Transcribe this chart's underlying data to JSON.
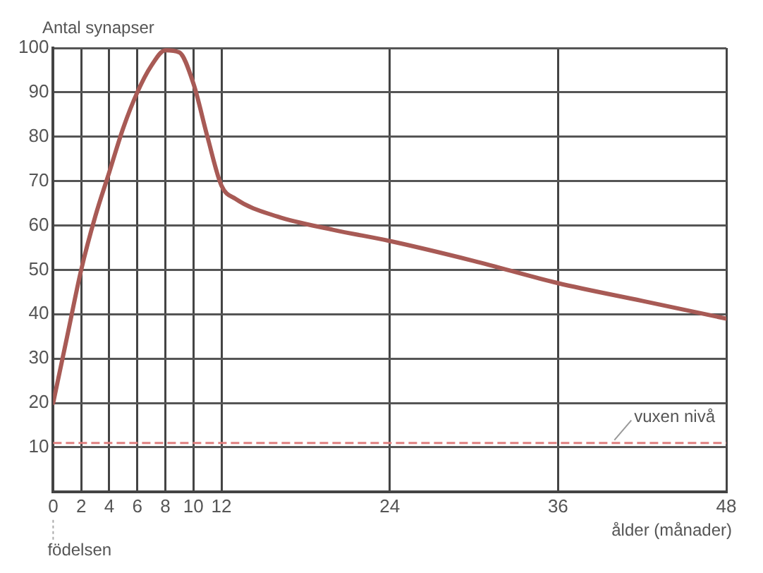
{
  "chart_data": {
    "type": "line",
    "xlabel": "ålder (månader)",
    "ylabel": "Antal synapser",
    "x": [
      0,
      1,
      2,
      3,
      4,
      5,
      6,
      7,
      8,
      9,
      10,
      11,
      12,
      13,
      16,
      20,
      24,
      30,
      36,
      42,
      48
    ],
    "series": [
      {
        "color": "#a85a55",
        "values": [
          20,
          35,
          50,
          62,
          72,
          82,
          90,
          96,
          99.5,
          99,
          92,
          80,
          69,
          66,
          62,
          59,
          56.5,
          52,
          47,
          43,
          39
        ]
      }
    ],
    "xlim": [
      0,
      48
    ],
    "xticks": [
      0,
      2,
      4,
      6,
      8,
      10,
      12,
      24,
      36,
      48
    ],
    "ylim": [
      0,
      100
    ],
    "yticks": [
      10,
      20,
      30,
      40,
      50,
      60,
      70,
      80,
      90,
      100
    ],
    "ref_lines": [
      {
        "axis": "y",
        "value": 11,
        "label": "vuxen nivå",
        "color": "#e08080",
        "line_style": "dashed"
      }
    ],
    "annotations": [
      "födelsen"
    ],
    "grid": true,
    "legend": false,
    "marker": "none",
    "line_style": "solid"
  }
}
